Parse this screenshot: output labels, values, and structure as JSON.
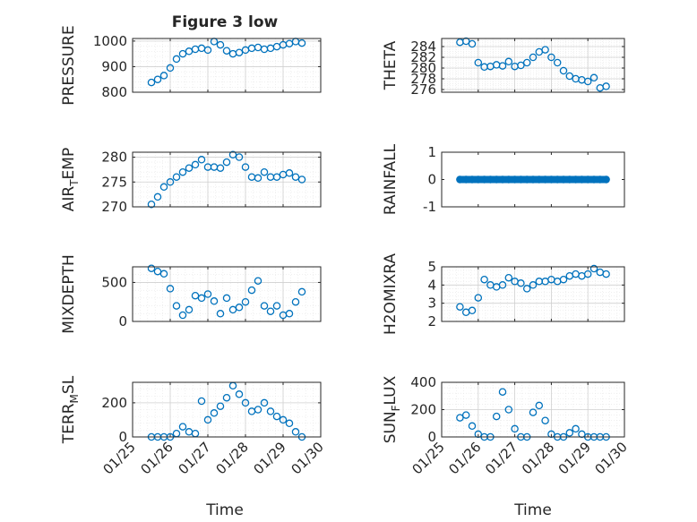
{
  "figure": {
    "title": "Figure 3 low"
  },
  "colors": {
    "marker": "#0072BD",
    "axis": "#262626",
    "grid": "#d0d0d0",
    "minor_grid": "#e6e6e6"
  },
  "x_axis": {
    "label": "Time",
    "ticks": [
      "01/25",
      "01/26",
      "01/27",
      "01/28",
      "01/29",
      "01/30"
    ],
    "range": [
      "01/25",
      "01/30"
    ]
  },
  "chart_data": [
    {
      "type": "scatter",
      "ylabel": "PRESSURE",
      "ylim": [
        800,
        1010
      ],
      "yticks": [
        "800",
        "900",
        "1000"
      ],
      "grid": "on",
      "xticklabels": false,
      "title": "Figure 3 low",
      "x": [
        "01/25 12:00",
        "01/25 16:00",
        "01/25 20:00",
        "01/26 00:00",
        "01/26 04:00",
        "01/26 08:00",
        "01/26 12:00",
        "01/26 16:00",
        "01/26 20:00",
        "01/27 00:00",
        "01/27 04:00",
        "01/27 08:00",
        "01/27 12:00",
        "01/27 16:00",
        "01/27 20:00",
        "01/28 00:00",
        "01/28 04:00",
        "01/28 08:00",
        "01/28 12:00",
        "01/28 16:00",
        "01/28 20:00",
        "01/29 00:00",
        "01/29 04:00",
        "01/29 08:00",
        "01/29 12:00"
      ],
      "y": [
        838,
        850,
        865,
        895,
        930,
        950,
        960,
        968,
        972,
        965,
        998,
        985,
        962,
        950,
        955,
        965,
        972,
        975,
        968,
        972,
        978,
        985,
        990,
        998,
        992
      ]
    },
    {
      "type": "scatter",
      "ylabel": "THETA",
      "ylim": [
        275.5,
        285.5
      ],
      "yticks": [
        "276",
        "278",
        "280",
        "282",
        "284"
      ],
      "grid": "on",
      "xticklabels": false,
      "x": [
        "01/25 12:00",
        "01/25 16:00",
        "01/25 20:00",
        "01/26 00:00",
        "01/26 04:00",
        "01/26 08:00",
        "01/26 12:00",
        "01/26 16:00",
        "01/26 20:00",
        "01/27 00:00",
        "01/27 04:00",
        "01/27 08:00",
        "01/27 12:00",
        "01/27 16:00",
        "01/27 20:00",
        "01/28 00:00",
        "01/28 04:00",
        "01/28 08:00",
        "01/28 12:00",
        "01/28 16:00",
        "01/28 20:00",
        "01/29 00:00",
        "01/29 04:00",
        "01/29 08:00",
        "01/29 12:00"
      ],
      "y": [
        284.8,
        285.0,
        284.5,
        281.0,
        280.2,
        280.3,
        280.6,
        280.4,
        281.2,
        280.3,
        280.5,
        281.0,
        282.0,
        283.0,
        283.4,
        282.0,
        281.0,
        279.5,
        278.5,
        278.0,
        277.8,
        277.5,
        278.2,
        276.3,
        276.6
      ]
    },
    {
      "type": "scatter",
      "ylabel": "AIR_T_EMP",
      "ylim": [
        270,
        281
      ],
      "yticks": [
        "270",
        "275",
        "280"
      ],
      "grid": "on",
      "xticklabels": false,
      "x": [
        "01/25 12:00",
        "01/25 16:00",
        "01/25 20:00",
        "01/26 00:00",
        "01/26 04:00",
        "01/26 08:00",
        "01/26 12:00",
        "01/26 16:00",
        "01/26 20:00",
        "01/27 00:00",
        "01/27 04:00",
        "01/27 08:00",
        "01/27 12:00",
        "01/27 16:00",
        "01/27 20:00",
        "01/28 00:00",
        "01/28 04:00",
        "01/28 08:00",
        "01/28 12:00",
        "01/28 16:00",
        "01/28 20:00",
        "01/29 00:00",
        "01/29 04:00",
        "01/29 08:00",
        "01/29 12:00"
      ],
      "y": [
        270.5,
        272.0,
        274.0,
        275.0,
        276.0,
        277.0,
        277.8,
        278.5,
        279.5,
        278.0,
        278.0,
        277.8,
        279.0,
        280.5,
        280.0,
        278.0,
        276.0,
        275.8,
        277.0,
        276.0,
        276.0,
        276.5,
        276.8,
        276.0,
        275.5
      ]
    },
    {
      "type": "scatter",
      "ylabel": "RAINFALL",
      "ylim": [
        -1,
        1
      ],
      "yticks": [
        "-1",
        "0",
        "1"
      ],
      "grid": "off",
      "xticklabels": false,
      "x": [
        "01/25 12:00",
        "01/25 16:00",
        "01/25 20:00",
        "01/26 00:00",
        "01/26 04:00",
        "01/26 08:00",
        "01/26 12:00",
        "01/26 16:00",
        "01/26 20:00",
        "01/27 00:00",
        "01/27 04:00",
        "01/27 08:00",
        "01/27 12:00",
        "01/27 16:00",
        "01/27 20:00",
        "01/28 00:00",
        "01/28 04:00",
        "01/28 08:00",
        "01/28 12:00",
        "01/28 16:00",
        "01/28 20:00",
        "01/29 00:00",
        "01/29 04:00",
        "01/29 08:00",
        "01/29 12:00"
      ],
      "y": [
        0,
        0,
        0,
        0,
        0,
        0,
        0,
        0,
        0,
        0,
        0,
        0,
        0,
        0,
        0,
        0,
        0,
        0,
        0,
        0,
        0,
        0,
        0,
        0,
        0
      ]
    },
    {
      "type": "scatter",
      "ylabel": "MIXDEPTH",
      "ylim": [
        0,
        700
      ],
      "yticks": [
        "0",
        "500"
      ],
      "grid": "on",
      "xticklabels": false,
      "x": [
        "01/25 12:00",
        "01/25 16:00",
        "01/25 20:00",
        "01/26 00:00",
        "01/26 04:00",
        "01/26 08:00",
        "01/26 12:00",
        "01/26 16:00",
        "01/26 20:00",
        "01/27 00:00",
        "01/27 04:00",
        "01/27 08:00",
        "01/27 12:00",
        "01/27 16:00",
        "01/27 20:00",
        "01/28 00:00",
        "01/28 04:00",
        "01/28 08:00",
        "01/28 12:00",
        "01/28 16:00",
        "01/28 20:00",
        "01/29 00:00",
        "01/29 04:00",
        "01/29 08:00",
        "01/29 12:00"
      ],
      "y": [
        680,
        640,
        610,
        420,
        200,
        80,
        150,
        330,
        300,
        350,
        260,
        100,
        300,
        150,
        180,
        250,
        400,
        520,
        200,
        130,
        200,
        80,
        100,
        250,
        380
      ]
    },
    {
      "type": "scatter",
      "ylabel": "H2OMIXRA",
      "ylim": [
        2,
        5
      ],
      "yticks": [
        "2",
        "3",
        "4",
        "5"
      ],
      "grid": "on",
      "xticklabels": false,
      "x": [
        "01/25 12:00",
        "01/25 16:00",
        "01/25 20:00",
        "01/26 00:00",
        "01/26 04:00",
        "01/26 08:00",
        "01/26 12:00",
        "01/26 16:00",
        "01/26 20:00",
        "01/27 00:00",
        "01/27 04:00",
        "01/27 08:00",
        "01/27 12:00",
        "01/27 16:00",
        "01/27 20:00",
        "01/28 00:00",
        "01/28 04:00",
        "01/28 08:00",
        "01/28 12:00",
        "01/28 16:00",
        "01/28 20:00",
        "01/29 00:00",
        "01/29 04:00",
        "01/29 08:00",
        "01/29 12:00"
      ],
      "y": [
        2.8,
        2.5,
        2.6,
        3.3,
        4.3,
        4.0,
        3.9,
        4.0,
        4.4,
        4.2,
        4.1,
        3.8,
        4.0,
        4.2,
        4.2,
        4.3,
        4.2,
        4.3,
        4.5,
        4.6,
        4.5,
        4.6,
        4.9,
        4.7,
        4.6
      ]
    },
    {
      "type": "scatter",
      "ylabel": "TERR_M_SL",
      "ylim": [
        0,
        320
      ],
      "yticks": [
        "0",
        "200"
      ],
      "grid": "on",
      "xticklabels": true,
      "x": [
        "01/25 12:00",
        "01/25 16:00",
        "01/25 20:00",
        "01/26 00:00",
        "01/26 04:00",
        "01/26 08:00",
        "01/26 12:00",
        "01/26 16:00",
        "01/26 20:00",
        "01/27 00:00",
        "01/27 04:00",
        "01/27 08:00",
        "01/27 12:00",
        "01/27 16:00",
        "01/27 20:00",
        "01/28 00:00",
        "01/28 04:00",
        "01/28 08:00",
        "01/28 12:00",
        "01/28 16:00",
        "01/28 20:00",
        "01/29 00:00",
        "01/29 04:00",
        "01/29 08:00",
        "01/29 12:00"
      ],
      "y": [
        0,
        0,
        0,
        0,
        20,
        60,
        30,
        20,
        210,
        100,
        140,
        180,
        230,
        300,
        250,
        200,
        150,
        160,
        200,
        150,
        120,
        100,
        80,
        30,
        0
      ]
    },
    {
      "type": "scatter",
      "ylabel": "SUN_F_LUX",
      "ylim": [
        0,
        400
      ],
      "yticks": [
        "0",
        "200",
        "400"
      ],
      "grid": "on",
      "xticklabels": true,
      "x": [
        "01/25 12:00",
        "01/25 16:00",
        "01/25 20:00",
        "01/26 00:00",
        "01/26 04:00",
        "01/26 08:00",
        "01/26 12:00",
        "01/26 16:00",
        "01/26 20:00",
        "01/27 00:00",
        "01/27 04:00",
        "01/27 08:00",
        "01/27 12:00",
        "01/27 16:00",
        "01/27 20:00",
        "01/28 00:00",
        "01/28 04:00",
        "01/28 08:00",
        "01/28 12:00",
        "01/28 16:00",
        "01/28 20:00",
        "01/29 00:00",
        "01/29 04:00",
        "01/29 08:00",
        "01/29 12:00"
      ],
      "y": [
        140,
        160,
        80,
        20,
        0,
        0,
        150,
        330,
        200,
        60,
        0,
        0,
        180,
        230,
        120,
        20,
        0,
        0,
        30,
        60,
        20,
        0,
        0,
        0,
        0
      ]
    }
  ]
}
